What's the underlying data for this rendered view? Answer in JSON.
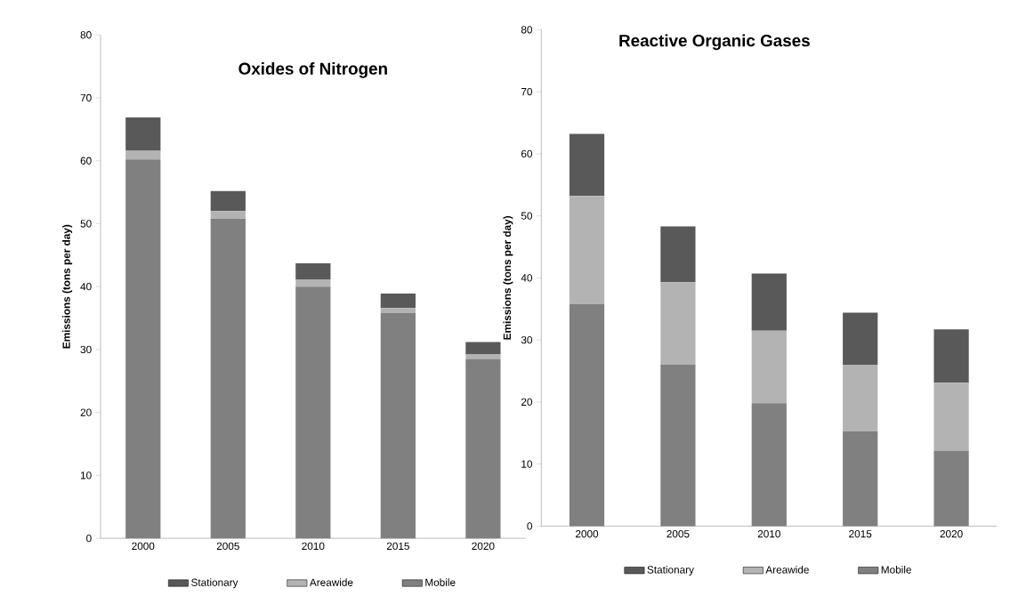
{
  "chart_data": [
    {
      "type": "bar",
      "title": "Oxides of Nitrogen",
      "ylabel": "Emissions (tons per day)",
      "categories": [
        "2000",
        "2005",
        "2010",
        "2015",
        "2020"
      ],
      "stacked": true,
      "legend": "bottom",
      "ylim": [
        0,
        80
      ],
      "yticks": [
        0,
        10,
        20,
        30,
        40,
        50,
        60,
        70,
        80
      ],
      "series": [
        {
          "name": "Mobile",
          "color": "#808080",
          "values": [
            60.2,
            50.8,
            40.0,
            35.8,
            28.5
          ]
        },
        {
          "name": "Areawide",
          "color": "#b3b3b3",
          "values": [
            1.4,
            1.2,
            1.1,
            0.8,
            0.7
          ]
        },
        {
          "name": "Stationary",
          "color": "#595959",
          "values": [
            5.3,
            3.2,
            2.6,
            2.3,
            2.0
          ]
        }
      ]
    },
    {
      "type": "bar",
      "title": "Reactive Organic Gases",
      "ylabel": "Emissions (tons per day)",
      "categories": [
        "2000",
        "2005",
        "2010",
        "2015",
        "2020"
      ],
      "stacked": true,
      "legend": "bottom",
      "ylim": [
        0,
        80
      ],
      "yticks": [
        0,
        10,
        20,
        30,
        40,
        50,
        60,
        70,
        80
      ],
      "series": [
        {
          "name": "Mobile",
          "color": "#808080",
          "values": [
            35.8,
            26.0,
            19.8,
            15.3,
            12.1
          ]
        },
        {
          "name": "Areawide",
          "color": "#b3b3b3",
          "values": [
            17.4,
            13.3,
            11.7,
            10.7,
            11.0
          ]
        },
        {
          "name": "Stationary",
          "color": "#595959",
          "values": [
            10.0,
            9.0,
            9.2,
            8.4,
            8.6
          ]
        }
      ]
    }
  ]
}
